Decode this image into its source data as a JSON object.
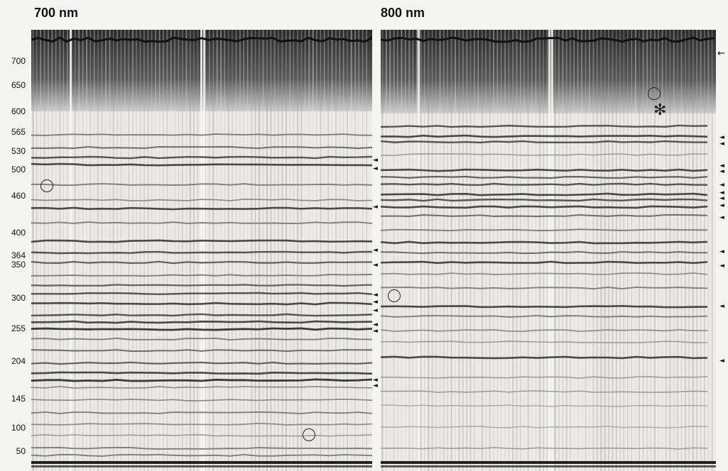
{
  "panels": [
    {
      "title": "700 nm"
    },
    {
      "title": "800 nm"
    }
  ],
  "size_markers": [
    "700",
    "650",
    "600",
    "565",
    "530",
    "500",
    "460",
    "400",
    "364",
    "350",
    "300",
    "255",
    "204",
    "145",
    "100",
    "50"
  ],
  "colors": {
    "background": "#f4f4f2",
    "band": "#1f1f1f",
    "annotation": "#111111"
  },
  "icons": {
    "band_marker": "arrowhead-left-icon",
    "long_marker": "arrow-left-icon",
    "highlight": "circle-outline-icon",
    "note": "asterisk-icon"
  },
  "symbols": {
    "arrowhead": "◄",
    "arrow": "←",
    "asterisk": "✻"
  }
}
